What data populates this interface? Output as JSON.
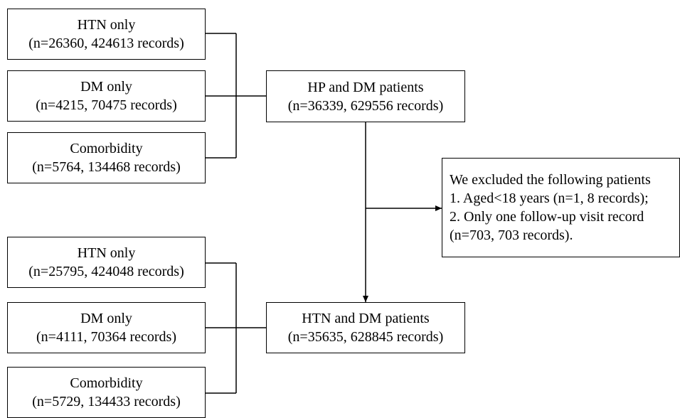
{
  "top_group": [
    {
      "title": "HTN only",
      "detail": "(n=26360, 424613 records)"
    },
    {
      "title": "DM only",
      "detail": "(n=4215, 70475 records)"
    },
    {
      "title": "Comorbidity",
      "detail": "(n=5764, 134468 records)"
    }
  ],
  "top_merge": {
    "title": "HP and DM patients",
    "detail": "(n=36339, 629556 records)"
  },
  "exclusion": {
    "lines": [
      "We excluded the following patients",
      "1. Aged<18 years (n=1, 8 records);",
      "2. Only one follow-up visit record",
      "(n=703, 703 records)."
    ]
  },
  "bottom_group": [
    {
      "title": "HTN only",
      "detail": "(n=25795, 424048 records)"
    },
    {
      "title": "DM only",
      "detail": "(n=4111, 70364 records)"
    },
    {
      "title": "Comorbidity",
      "detail": "(n=5729, 134433 records)"
    }
  ],
  "bottom_merge": {
    "title": "HTN and DM patients",
    "detail": "(n=35635, 628845 records)"
  }
}
